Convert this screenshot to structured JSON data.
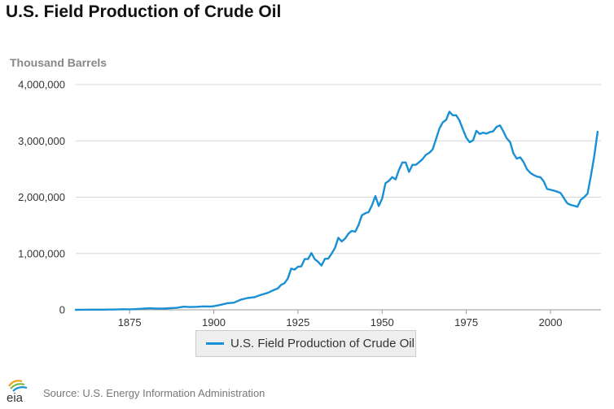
{
  "chart_data": {
    "type": "line",
    "title": "U.S. Field Production of Crude Oil",
    "ylabel": "Thousand Barrels",
    "xlabel": "",
    "xlim": [
      1859,
      2015
    ],
    "ylim": [
      0,
      4000000
    ],
    "x_ticks": [
      1875,
      1900,
      1925,
      1950,
      1975,
      2000
    ],
    "x_tick_labels": [
      "1875",
      "1900",
      "1925",
      "1950",
      "1975",
      "2000"
    ],
    "y_ticks": [
      0,
      1000000,
      2000000,
      3000000,
      4000000
    ],
    "y_tick_labels": [
      "0",
      "1,000,000",
      "2,000,000",
      "3,000,000",
      "4,000,000"
    ],
    "grid": "horizontal",
    "legend_position": "bottom-center",
    "series": [
      {
        "name": "U.S. Field Production of Crude Oil",
        "color": "#1a90d4",
        "x": [
          1859,
          1861,
          1863,
          1865,
          1867,
          1869,
          1871,
          1873,
          1875,
          1877,
          1879,
          1881,
          1883,
          1885,
          1887,
          1889,
          1891,
          1893,
          1895,
          1897,
          1899,
          1900,
          1902,
          1904,
          1906,
          1908,
          1910,
          1912,
          1914,
          1916,
          1918,
          1919,
          1920,
          1921,
          1922,
          1923,
          1924,
          1925,
          1926,
          1927,
          1928,
          1929,
          1930,
          1931,
          1932,
          1933,
          1934,
          1935,
          1936,
          1937,
          1938,
          1939,
          1940,
          1941,
          1942,
          1943,
          1944,
          1945,
          1946,
          1947,
          1948,
          1949,
          1950,
          1951,
          1952,
          1953,
          1954,
          1955,
          1956,
          1957,
          1958,
          1959,
          1960,
          1961,
          1962,
          1963,
          1964,
          1965,
          1966,
          1967,
          1968,
          1969,
          1970,
          1971,
          1972,
          1973,
          1974,
          1975,
          1976,
          1977,
          1978,
          1979,
          1980,
          1981,
          1982,
          1983,
          1984,
          1985,
          1986,
          1987,
          1988,
          1989,
          1990,
          1991,
          1992,
          1993,
          1994,
          1995,
          1996,
          1997,
          1998,
          1999,
          2000,
          2001,
          2002,
          2003,
          2004,
          2005,
          2006,
          2007,
          2008,
          2009,
          2010,
          2011,
          2012,
          2013,
          2014
        ],
        "values": [
          2,
          2100,
          2600,
          2500,
          3300,
          4200,
          5200,
          9900,
          8800,
          13300,
          19900,
          27700,
          23400,
          21900,
          28300,
          35200,
          54300,
          48400,
          52900,
          60500,
          57100,
          63600,
          88800,
          117100,
          126500,
          178500,
          209600,
          223000,
          265800,
          300800,
          355900,
          378400,
          442900,
          472200,
          557500,
          732400,
          713900,
          763700,
          770900,
          901100,
          901500,
          1007300,
          898000,
          851100,
          785200,
          905700,
          908100,
          996600,
          1099700,
          1279200,
          1214400,
          1264900,
          1353200,
          1402200,
          1386600,
          1505600,
          1677900,
          1713700,
          1733900,
          1856900,
          2020200,
          1841900,
          1973600,
          2247700,
          2289800,
          2357100,
          2315000,
          2484400,
          2617300,
          2616900,
          2448900,
          2574600,
          2574900,
          2621800,
          2676200,
          2752700,
          2786800,
          2848500,
          3027800,
          3215700,
          3329000,
          3371800,
          3517500,
          3453900,
          3455400,
          3360900,
          3202600,
          3056800,
          2976200,
          3009300,
          3178200,
          3121300,
          3146400,
          3128600,
          3156700,
          3170900,
          3249700,
          3274600,
          3168300,
          3047400,
          2979100,
          2778800,
          2684700,
          2707000,
          2624600,
          2499000,
          2431500,
          2394300,
          2366000,
          2354800,
          2281900,
          2147200,
          2130700,
          2117500,
          2097100,
          2073500,
          1983300,
          1890100,
          1862300,
          1848500,
          1830000,
          1953500,
          1999300,
          2061500,
          2377600,
          2725300,
          3163200
        ]
      }
    ]
  },
  "legend": {
    "label": "U.S. Field Production of Crude Oil"
  },
  "footer": {
    "logo_text": "eia",
    "source": "Source: U.S. Energy Information Administration"
  }
}
